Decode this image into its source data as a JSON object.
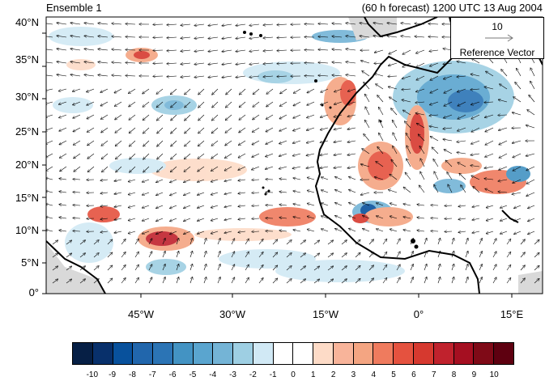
{
  "header": {
    "left_title": "Ensemble 1",
    "right_title": "(60 h forecast) 1200 UTC 13 Aug 2004"
  },
  "map": {
    "lat_labels": [
      "40°N",
      "35°N",
      "30°N",
      "25°N",
      "20°N",
      "15°N",
      "10°N",
      "5°N",
      "0°"
    ],
    "lon_labels": [
      "45°W",
      "30°W",
      "15°W",
      "0°",
      "15°E"
    ]
  },
  "reference_vector": {
    "magnitude": "10",
    "label": "Reference Vector"
  },
  "colorbar": {
    "labels": [
      "-10",
      "-9",
      "-8",
      "-7",
      "-6",
      "-5",
      "-4",
      "-3",
      "-2",
      "-1",
      "0",
      "1",
      "2",
      "3",
      "4",
      "5",
      "6",
      "7",
      "8",
      "9",
      "10"
    ],
    "colors": [
      "#061f45",
      "#08306b",
      "#08519c",
      "#2166ac",
      "#2b74b5",
      "#4393c3",
      "#5aa5cf",
      "#74b4d6",
      "#9ecfe3",
      "#d1e9f5",
      "#ffffff",
      "#ffffff",
      "#fddbc7",
      "#f8b49a",
      "#f4a582",
      "#ef7b5e",
      "#e5523f",
      "#d6392f",
      "#c0222d",
      "#a50f21",
      "#7f0a17",
      "#5e0010"
    ]
  }
}
